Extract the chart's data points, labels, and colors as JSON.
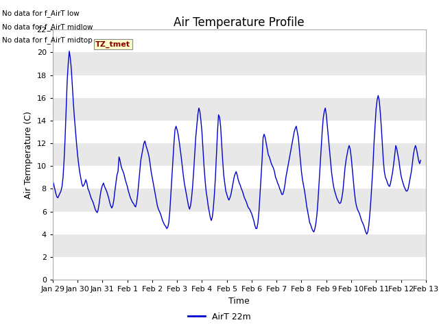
{
  "title": "Air Temperature Profile",
  "xlabel": "Time",
  "ylabel": "Air Termperature (C)",
  "ylim": [
    0,
    22
  ],
  "line_color": "#0000CC",
  "background_color": "#DCDCDC",
  "band_color_light": "#E8E8E8",
  "band_color_dark": "#D0D0D0",
  "grid_color": "#FFFFFF",
  "legend_label": "AirT 22m",
  "no_data_texts": [
    "No data for f_AirT low",
    "No data for f_AirT midlow",
    "No data for f_AirT midtop"
  ],
  "tz_label": "TZ_tmet",
  "x_tick_labels": [
    "Jan 29",
    "Jan 30",
    "Jan 31",
    "Feb 1",
    "Feb 2",
    "Feb 3",
    "Feb 4",
    "Feb 5",
    "Feb 6",
    "Feb 7",
    "Feb 8",
    "Feb 9",
    "Feb 10",
    "Feb 11",
    "Feb 12",
    "Feb 13"
  ],
  "x_tick_positions": [
    0,
    24,
    48,
    72,
    96,
    120,
    144,
    168,
    192,
    216,
    240,
    264,
    288,
    312,
    336,
    360
  ],
  "y_ticks": [
    0,
    2,
    4,
    6,
    8,
    10,
    12,
    14,
    16,
    18,
    20,
    22
  ],
  "temperature_data": [
    8.7,
    8.4,
    8.0,
    7.6,
    7.3,
    7.2,
    7.4,
    7.6,
    7.8,
    8.2,
    9.0,
    10.5,
    12.5,
    15.0,
    17.5,
    19.0,
    20.1,
    19.5,
    18.5,
    17.0,
    15.5,
    14.2,
    13.1,
    12.0,
    11.0,
    10.2,
    9.5,
    9.0,
    8.5,
    8.2,
    8.3,
    8.5,
    8.8,
    8.5,
    8.0,
    7.8,
    7.5,
    7.2,
    7.0,
    6.8,
    6.5,
    6.2,
    6.0,
    5.9,
    6.2,
    6.8,
    7.5,
    8.0,
    8.3,
    8.5,
    8.2,
    8.0,
    7.8,
    7.5,
    7.2,
    6.8,
    6.5,
    6.3,
    6.5,
    7.0,
    7.8,
    8.5,
    9.2,
    9.5,
    10.8,
    10.5,
    10.0,
    9.7,
    9.5,
    9.2,
    8.8,
    8.5,
    8.2,
    7.8,
    7.5,
    7.2,
    7.0,
    6.8,
    6.7,
    6.5,
    6.4,
    6.8,
    7.5,
    8.5,
    9.5,
    10.5,
    11.0,
    11.5,
    12.0,
    12.2,
    11.8,
    11.5,
    11.2,
    10.8,
    10.2,
    9.5,
    9.0,
    8.5,
    8.0,
    7.5,
    7.0,
    6.5,
    6.2,
    6.0,
    5.8,
    5.5,
    5.2,
    5.0,
    4.8,
    4.7,
    4.5,
    4.6,
    5.0,
    6.0,
    7.5,
    9.0,
    10.5,
    12.0,
    13.2,
    13.5,
    13.2,
    12.8,
    12.2,
    11.5,
    10.8,
    10.0,
    9.2,
    8.5,
    8.0,
    7.5,
    7.0,
    6.5,
    6.2,
    6.5,
    7.2,
    8.2,
    9.5,
    11.0,
    12.5,
    13.5,
    14.5,
    15.1,
    14.8,
    14.0,
    13.0,
    11.5,
    10.0,
    8.8,
    7.8,
    7.2,
    6.5,
    6.0,
    5.5,
    5.2,
    5.5,
    6.3,
    7.5,
    9.0,
    11.0,
    13.0,
    14.5,
    14.3,
    13.5,
    12.0,
    10.5,
    9.2,
    8.5,
    7.8,
    7.5,
    7.2,
    7.0,
    7.2,
    7.5,
    8.0,
    8.5,
    9.0,
    9.3,
    9.5,
    9.2,
    8.8,
    8.5,
    8.3,
    8.0,
    7.8,
    7.5,
    7.2,
    7.0,
    6.8,
    6.5,
    6.3,
    6.2,
    6.0,
    5.8,
    5.5,
    5.2,
    4.8,
    4.5,
    4.5,
    5.0,
    6.0,
    7.5,
    9.0,
    10.5,
    12.5,
    12.8,
    12.5,
    12.0,
    11.5,
    11.0,
    10.8,
    10.5,
    10.2,
    10.0,
    9.8,
    9.5,
    9.0,
    8.8,
    8.5,
    8.3,
    8.0,
    7.8,
    7.5,
    7.5,
    7.8,
    8.3,
    9.0,
    9.5,
    10.0,
    10.5,
    11.0,
    11.5,
    12.0,
    12.5,
    13.0,
    13.3,
    13.5,
    13.0,
    12.5,
    11.5,
    10.5,
    9.5,
    8.8,
    8.3,
    7.8,
    7.2,
    6.5,
    6.0,
    5.5,
    5.0,
    4.8,
    4.5,
    4.3,
    4.2,
    4.5,
    5.0,
    5.8,
    7.0,
    8.5,
    10.0,
    11.5,
    13.0,
    14.2,
    14.8,
    15.1,
    14.5,
    13.5,
    12.5,
    11.5,
    10.5,
    9.5,
    8.8,
    8.2,
    7.8,
    7.5,
    7.2,
    7.0,
    6.8,
    6.7,
    6.8,
    7.2,
    7.8,
    8.8,
    9.8,
    10.5,
    11.0,
    11.5,
    11.8,
    11.5,
    10.8,
    9.8,
    8.8,
    7.8,
    7.0,
    6.5,
    6.2,
    6.0,
    5.8,
    5.5,
    5.2,
    5.0,
    4.8,
    4.5,
    4.2,
    4.0,
    4.2,
    4.8,
    5.8,
    7.0,
    8.5,
    10.0,
    12.0,
    13.5,
    15.0,
    15.8,
    16.2,
    15.8,
    14.8,
    13.5,
    12.0,
    10.5,
    9.5,
    9.0,
    8.8,
    8.5,
    8.3,
    8.2,
    8.5,
    9.0,
    9.5,
    10.2,
    11.0,
    11.8,
    11.5,
    11.0,
    10.5,
    9.8,
    9.2,
    8.8,
    8.5,
    8.2,
    8.0,
    7.8,
    7.8,
    8.0,
    8.5,
    9.0,
    9.5,
    10.2,
    11.0,
    11.5,
    11.8,
    11.5,
    11.0,
    10.5,
    10.2,
    10.5
  ]
}
